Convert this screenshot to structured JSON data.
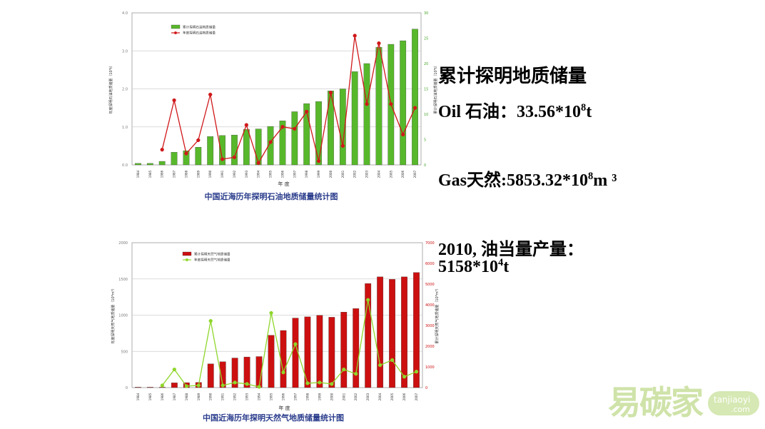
{
  "chart_data": [
    {
      "type": "bar+line",
      "title": "中国近海历年探明石油地质储量统计图",
      "xlabel": "年 度",
      "ylabel_left": "年度探明石油地质储量（10⁸t）",
      "ylabel_right": "累计探明石油地质储量（10⁸t）",
      "left_axis": {
        "ticks": [
          "0.0",
          "1.0",
          "2.0",
          "3.0",
          "4.0"
        ],
        "range": [
          0,
          4
        ]
      },
      "right_axis": {
        "ticks": [
          "0",
          "5",
          "10",
          "15",
          "20",
          "25",
          "30"
        ],
        "range": [
          0,
          30
        ]
      },
      "grid": true,
      "legend_position": "top-left",
      "categories": [
        "1984",
        "1985",
        "1986",
        "1987",
        "1988",
        "1989",
        "1990",
        "1991",
        "1992",
        "1993",
        "1994",
        "1995",
        "1996",
        "1997",
        "1998",
        "1999",
        "2000",
        "2001",
        "2002",
        "2003",
        "2004",
        "2005",
        "2006",
        "2007"
      ],
      "series": [
        {
          "name": "累计探明石油地质储量",
          "type": "bar",
          "axis": "right",
          "color": "#58b82b",
          "values": [
            0.3,
            0.3,
            0.7,
            2.5,
            2.8,
            3.5,
            5.6,
            5.8,
            5.9,
            7.0,
            7.1,
            7.6,
            8.7,
            10.5,
            12.1,
            12.5,
            14.6,
            15.0,
            18.4,
            20.0,
            23.2,
            23.8,
            24.5,
            26.8
          ]
        },
        {
          "name": "年度探明石油地质储量",
          "type": "line",
          "axis": "left",
          "color": "#d0181a",
          "values": [
            null,
            null,
            0.4,
            1.7,
            0.3,
            0.65,
            1.85,
            0.15,
            0.2,
            1.05,
            0.05,
            0.6,
            1.0,
            0.95,
            1.4,
            0.1,
            1.9,
            0.5,
            3.4,
            1.6,
            3.2,
            1.6,
            0.8,
            1.5
          ]
        }
      ]
    },
    {
      "type": "bar+line",
      "title": "中国近海历年探明天然气地质储量统计图",
      "xlabel": "年 度",
      "ylabel_left": "年度探明天然气地质储量（10⁸m³）",
      "ylabel_right": "累计探明天然气地质储量（10⁸m³）",
      "left_axis": {
        "ticks": [
          "0",
          "500",
          "1000",
          "1500",
          "2000"
        ],
        "range": [
          0,
          2000
        ]
      },
      "right_axis": {
        "ticks": [
          "0",
          "1000",
          "2000",
          "3000",
          "4000",
          "5000",
          "6000",
          "7000"
        ],
        "range": [
          0,
          7000
        ]
      },
      "grid": true,
      "legend_position": "top-left",
      "categories": [
        "1984",
        "1985",
        "1986",
        "1987",
        "1988",
        "1989",
        "1990",
        "1991",
        "1992",
        "1993",
        "1994",
        "1995",
        "1996",
        "1997",
        "1998",
        "1999",
        "2000",
        "2001",
        "2002",
        "2003",
        "2004",
        "2005",
        "2006",
        "2007"
      ],
      "series": [
        {
          "name": "累计探明天然气地质储量",
          "type": "bar",
          "axis": "right",
          "color": "#cc1010",
          "values": [
            0,
            0,
            0,
            230,
            240,
            250,
            1150,
            1250,
            1430,
            1480,
            1500,
            2530,
            2760,
            3360,
            3420,
            3490,
            3400,
            3650,
            3820,
            5030,
            5350,
            5230,
            5350,
            5560
          ]
        },
        {
          "name": "年度探明天然气地质储量",
          "type": "line",
          "axis": "left",
          "color": "#8fd62b",
          "values": [
            null,
            null,
            30,
            250,
            20,
            30,
            920,
            30,
            70,
            50,
            10,
            1030,
            210,
            600,
            60,
            70,
            50,
            250,
            190,
            1210,
            310,
            380,
            150,
            220
          ]
        }
      ]
    }
  ],
  "side_text": {
    "heading": "累计探明地质储量",
    "oil_label": "Oil",
    "oil_cn": "石油",
    "oil_value": "：33.56*10",
    "oil_exp": "8",
    "oil_unit": "t",
    "gas_label": "Gas",
    "gas_cn": "天然",
    "gas_value": ":5853.32*10",
    "gas_exp": "8",
    "gas_unit": "m ³",
    "prod_year": "2010,",
    "prod_label": "油当量产量：",
    "prod_value": "5158*10",
    "prod_exp": "4",
    "prod_unit": "t"
  },
  "watermark": {
    "logo_cn": "易碳家",
    "logo_domain": "tanjiaoyi",
    "logo_com": ".com"
  }
}
